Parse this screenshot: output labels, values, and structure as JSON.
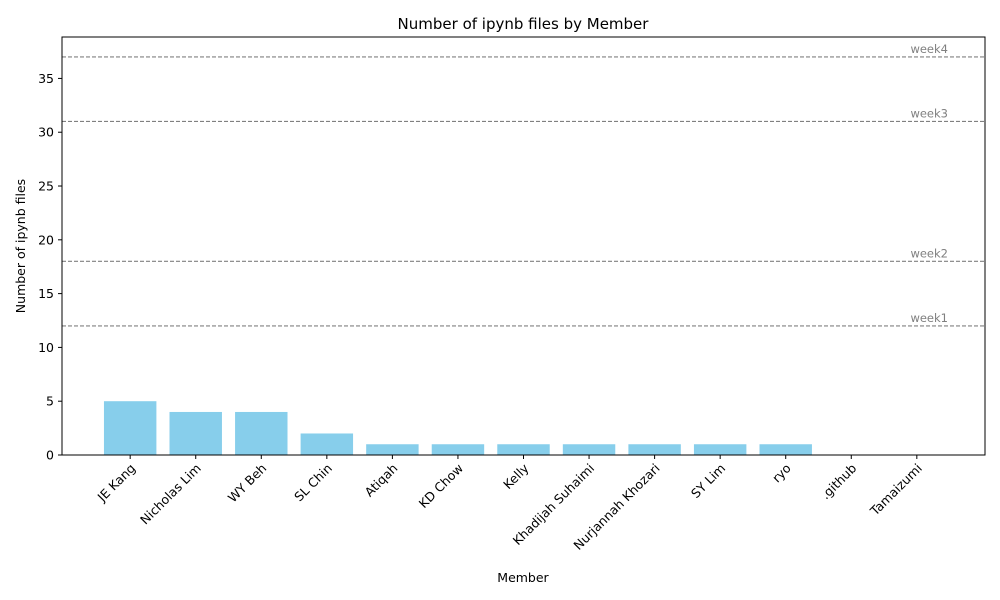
{
  "chart_data": {
    "type": "bar",
    "title": "Number of ipynb files by Member",
    "xlabel": "Member",
    "ylabel": "Number of ipynb files",
    "categories": [
      "JE Kang",
      "Nicholas Lim",
      "WY Beh",
      "SL Chin",
      "Atiqah",
      "KD Chow",
      "Kelly",
      "Khadijah Suhaimi",
      "Nurjannah Khozari",
      "SY Lim",
      "ryo",
      ".github",
      "Tamaizumi"
    ],
    "values": [
      5,
      4,
      4,
      2,
      1,
      1,
      1,
      1,
      1,
      1,
      1,
      0,
      0
    ],
    "ylim": [
      0,
      38.85
    ],
    "yticks": [
      0,
      5,
      10,
      15,
      20,
      25,
      30,
      35
    ],
    "x_tick_rotation_deg": 45,
    "bar_color": "#87ceeb",
    "reference_lines": [
      {
        "label": "week1",
        "value": 12
      },
      {
        "label": "week2",
        "value": 18
      },
      {
        "label": "week3",
        "value": 31
      },
      {
        "label": "week4",
        "value": 37
      }
    ],
    "reference_line_color": "#808080",
    "reference_line_style": "dashed",
    "grid": false,
    "legend": "none"
  }
}
